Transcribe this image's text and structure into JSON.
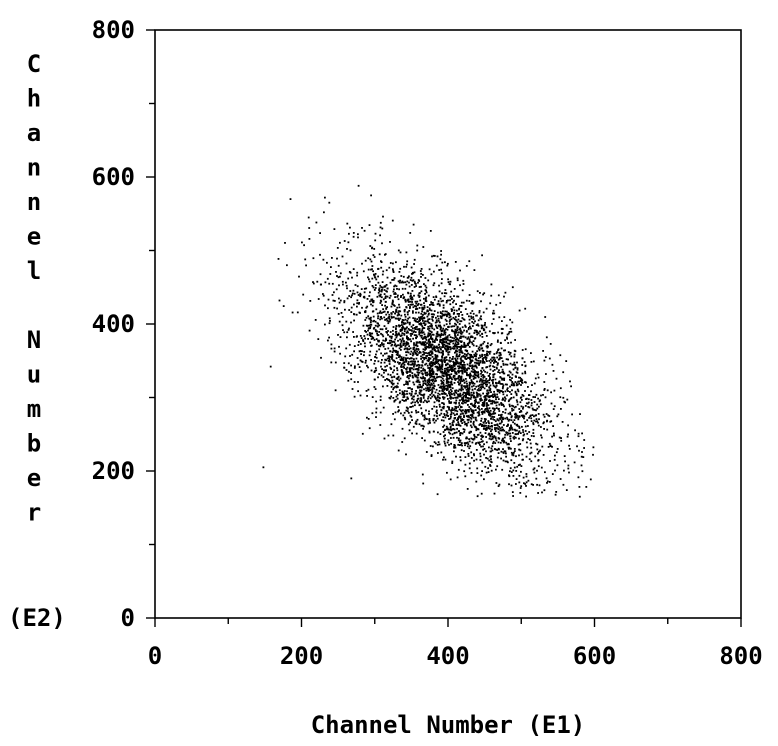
{
  "chart_data": {
    "type": "scatter",
    "title": "",
    "xlabel": "Channel Number (E1)",
    "ylabel_letters": [
      "C",
      "h",
      "a",
      "n",
      "n",
      "e",
      "l",
      "",
      "N",
      "u",
      "m",
      "b",
      "e",
      "r"
    ],
    "ylabel_suffix": "(E2)",
    "xlim": [
      0,
      800
    ],
    "ylim": [
      0,
      800
    ],
    "xticks": [
      0,
      200,
      400,
      600,
      800
    ],
    "yticks": [
      0,
      200,
      400,
      600,
      800
    ],
    "x_tick_labels": [
      "0",
      "200",
      "400",
      "600",
      "800"
    ],
    "y_tick_labels": [
      "0",
      "200",
      "400",
      "600",
      "800"
    ],
    "minor_tick_step": 100,
    "grid": false,
    "legend": "none",
    "point_color": "#000000",
    "distribution": {
      "n_points": 4200,
      "mean_x": 400,
      "mean_y": 340,
      "sd_x": 70,
      "sd_y": 70,
      "correlation": -0.62,
      "x_range": [
        145,
        600
      ],
      "y_range": [
        165,
        590
      ]
    },
    "outliers": [
      {
        "x": 148,
        "y": 205
      },
      {
        "x": 158,
        "y": 342
      },
      {
        "x": 170,
        "y": 432
      },
      {
        "x": 180,
        "y": 480
      },
      {
        "x": 185,
        "y": 570
      },
      {
        "x": 232,
        "y": 572
      },
      {
        "x": 238,
        "y": 565
      },
      {
        "x": 278,
        "y": 588
      },
      {
        "x": 295,
        "y": 575
      },
      {
        "x": 268,
        "y": 190
      },
      {
        "x": 580,
        "y": 165
      },
      {
        "x": 598,
        "y": 222
      }
    ]
  }
}
